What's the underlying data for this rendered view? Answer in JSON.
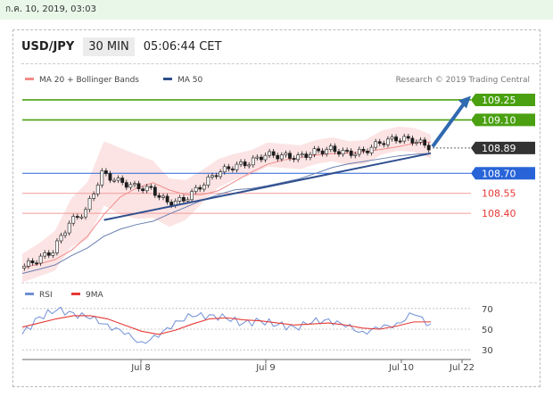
{
  "date_text": "ก.ค. 10, 2019, 03:03",
  "header": {
    "symbol": "USD/JPY",
    "timeframe": "30 MIN",
    "time": "05:06:44 CET"
  },
  "legend": {
    "ma20": "MA 20 + Bollinger Bands",
    "ma50": "MA 50",
    "credit": "Research © 2019 Trading Central"
  },
  "colors": {
    "green": "#4aa010",
    "blue": "#2864d8",
    "red": "#e53935",
    "dark": "#333333",
    "arrow": "#2f69b0",
    "band": "#fbd6d6",
    "candle": "#1d1d1d"
  },
  "chart_data": [
    {
      "type": "candlestick",
      "x_ticks": [
        "Jul 8",
        "Jul 9",
        "Jul 10",
        "Jul 22"
      ],
      "ylim": [
        107.96,
        109.33
      ],
      "close_approx": [
        107.99,
        108.05,
        108.12,
        108.33,
        108.42,
        108.7,
        108.64,
        108.6,
        108.58,
        108.48,
        108.5,
        108.6,
        108.7,
        108.75,
        108.78,
        108.84,
        108.83,
        108.82,
        108.86,
        108.88,
        108.85,
        108.86,
        108.93,
        108.96,
        108.95,
        108.9
      ],
      "levels": [
        {
          "label": "109.25",
          "value": 109.25,
          "role": "resistance"
        },
        {
          "label": "109.10",
          "value": 109.1,
          "role": "resistance"
        },
        {
          "label": "108.89",
          "value": 108.89,
          "role": "last"
        },
        {
          "label": "108.70",
          "value": 108.7,
          "role": "pivot"
        },
        {
          "label": "108.55",
          "value": 108.55,
          "role": "support"
        },
        {
          "label": "108.40",
          "value": 108.4,
          "role": "support"
        }
      ],
      "legend": [
        "MA 20 + Bollinger Bands",
        "MA 50"
      ]
    },
    {
      "type": "line",
      "series": [
        {
          "name": "RSI"
        },
        {
          "name": "9MA"
        }
      ],
      "y_ticks": [
        70,
        50,
        30
      ],
      "rsi_approx": [
        45,
        62,
        68,
        66,
        60,
        55,
        45,
        38,
        42,
        58,
        62,
        64,
        60,
        56,
        58,
        54,
        52,
        56,
        60,
        52,
        48,
        50,
        56,
        64,
        55
      ],
      "ma9_approx": [
        52,
        56,
        60,
        63,
        63,
        60,
        54,
        48,
        45,
        49,
        55,
        60,
        61,
        59,
        58,
        56,
        54,
        55,
        56,
        54,
        51,
        50,
        53,
        57,
        57
      ]
    }
  ]
}
